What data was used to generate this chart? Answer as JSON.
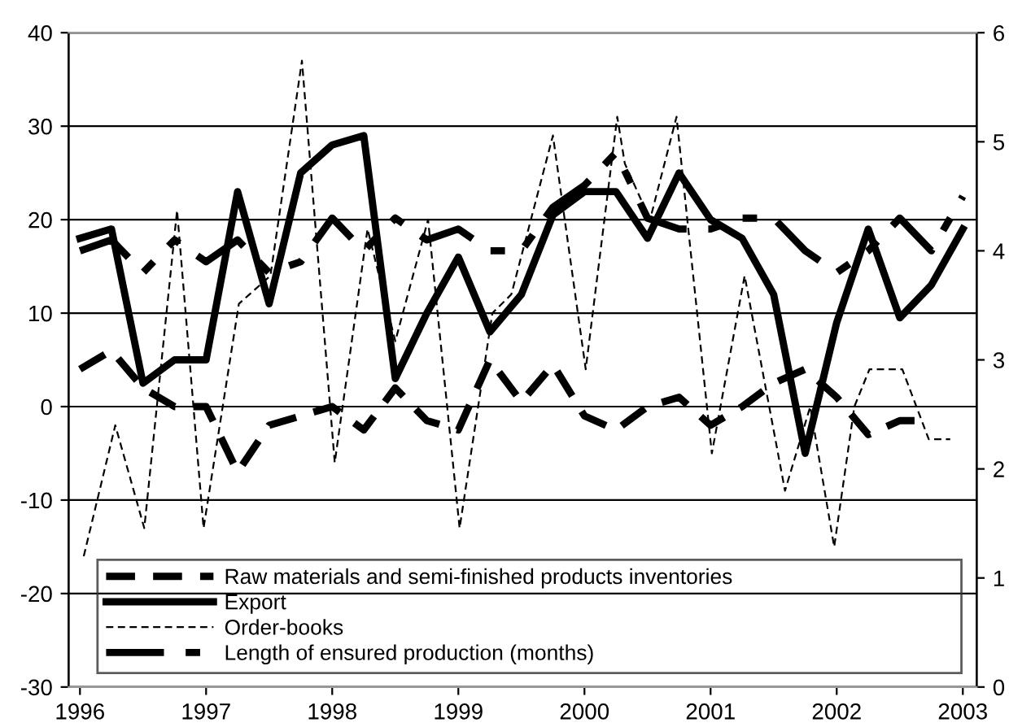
{
  "chart_data": {
    "type": "line",
    "x": [
      1996,
      1996.25,
      1996.5,
      1996.75,
      1997,
      1997.25,
      1997.5,
      1997.75,
      1998,
      1998.25,
      1998.5,
      1998.75,
      1999,
      1999.25,
      1999.5,
      1999.75,
      2000,
      2000.25,
      2000.5,
      2000.75,
      2001,
      2001.25,
      2001.5,
      2001.75,
      2002,
      2002.25,
      2002.5,
      2002.75,
      2003
    ],
    "series": [
      {
        "name": "Raw materials and semi-finished products inventories",
        "color": "#000000",
        "line_style": "dashed",
        "values": [
          4,
          6,
          2,
          0,
          0,
          -7,
          -2,
          -1,
          0,
          -2.5,
          2,
          -1.5,
          -2.5,
          5,
          0.5,
          4.5,
          -1,
          -2.5,
          0,
          1,
          -2,
          0,
          2.5,
          4,
          1,
          -3,
          -1.5,
          -1.5,
          null
        ]
      },
      {
        "name": "Export",
        "color": "#000000",
        "line_style": "solid",
        "values": [
          18,
          19,
          2.5,
          5,
          5,
          23,
          11,
          25,
          28,
          29,
          3,
          10,
          16,
          8,
          12,
          20.5,
          23,
          23,
          18,
          25,
          20,
          18,
          12,
          -5,
          9,
          19,
          9.5,
          13,
          19
        ]
      },
      {
        "name": "Order-books",
        "color": "#000000",
        "line_style": "dashed",
        "x": [
          1996.03,
          1996.28,
          1996.51,
          1996.77,
          1996.98,
          1997.26,
          1997.51,
          1997.76,
          1998.02,
          1998.28,
          1998.5,
          1998.76,
          1999.01,
          1999.27,
          1999.42,
          1999.75,
          2000.01,
          2000.26,
          2000.32,
          2000.52,
          2000.73,
          2001.01,
          2001.27,
          2001.59,
          2001.79,
          2001.98,
          2002.14,
          2002.26,
          2002.52,
          2002.73,
          2002.9
        ],
        "values": [
          -16,
          -2,
          -13,
          21,
          -13,
          11,
          14,
          37,
          -6,
          19,
          7,
          20,
          -13,
          10,
          12,
          29,
          4,
          31,
          26,
          20,
          31,
          -5,
          14,
          -9,
          0,
          -15,
          0,
          4,
          4,
          -3.5,
          -3.5
        ]
      },
      {
        "name": "Length of ensured production (months)",
        "color": "#000000",
        "line_style": "dashdot",
        "axis": "y2",
        "values": [
          4.0,
          4.1,
          3.8,
          4.1,
          3.9,
          4.1,
          3.8,
          3.9,
          4.3,
          4.0,
          4.3,
          4.1,
          4.2,
          4.0,
          4.0,
          4.4,
          4.6,
          4.9,
          4.3,
          4.2,
          4.2,
          4.3,
          4.3,
          4.0,
          3.8,
          4.0,
          4.3,
          4.0,
          4.5
        ]
      }
    ],
    "xlim": [
      1995.91,
      2003.11
    ],
    "xticks": [
      1996,
      1997,
      1998,
      1999,
      2000,
      2001,
      2002,
      2003
    ],
    "ylim": [
      -30,
      40
    ],
    "yticks": [
      -30,
      -20,
      -10,
      0,
      10,
      20,
      30,
      40
    ],
    "y2lim": [
      0,
      6
    ],
    "y2ticks": [
      0,
      1,
      2,
      3,
      4,
      5,
      6
    ],
    "grid": "y",
    "legend": "bottom",
    "marker": "none"
  }
}
